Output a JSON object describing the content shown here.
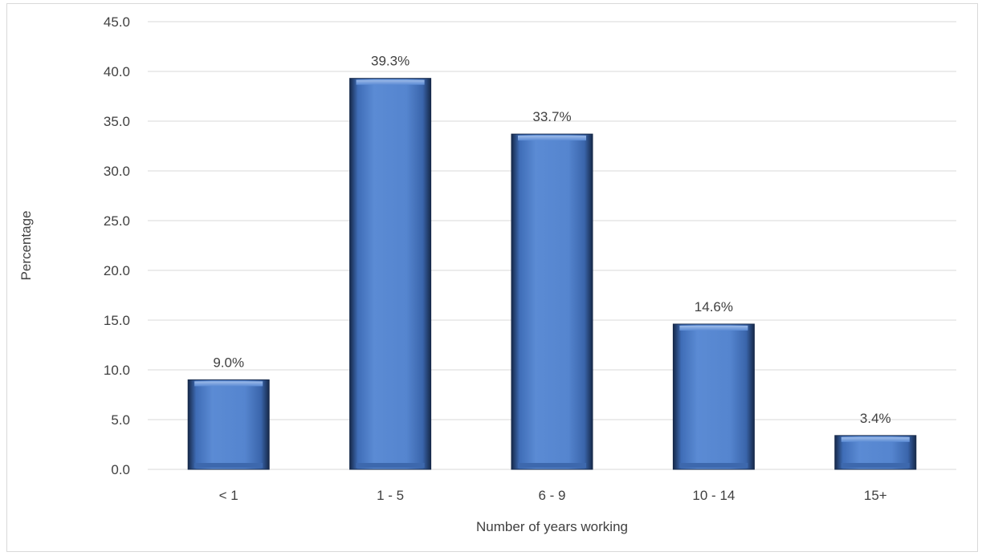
{
  "chart_data": {
    "type": "bar",
    "title": "",
    "xlabel": "Number of years working",
    "ylabel": "Percentage",
    "categories": [
      "< 1",
      "1 - 5",
      "6 - 9",
      "10 - 14",
      "15+"
    ],
    "values": [
      9.0,
      39.3,
      33.7,
      14.6,
      3.4
    ],
    "data_labels": [
      "9.0%",
      "39.3%",
      "33.7%",
      "14.6%",
      "3.4%"
    ],
    "ylim": [
      0,
      45
    ],
    "yticks": [
      "0.0",
      "5.0",
      "10.0",
      "15.0",
      "20.0",
      "25.0",
      "30.0",
      "35.0",
      "40.0",
      "45.0"
    ],
    "grid": true,
    "legend": "none",
    "colors": {
      "bar": "#5585cf",
      "bar_dark": "#1f3864",
      "grid": "#d9d9d9",
      "text": "#404040"
    }
  }
}
